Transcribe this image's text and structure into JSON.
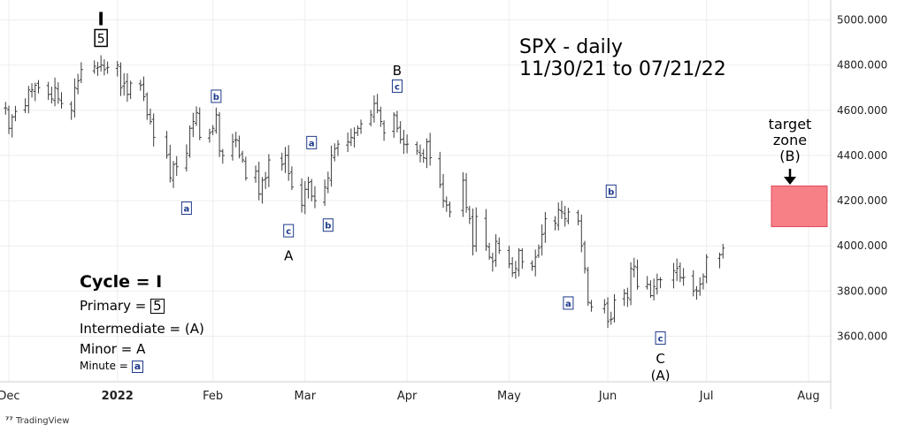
{
  "title_line1": "SPX - daily",
  "title_line2": "11/30/21 to 07/21/22",
  "target_zone": {
    "line1": "target",
    "line2": "zone",
    "line3": "(B)",
    "price_low": 4085,
    "price_high": 4265,
    "color": "#f78087"
  },
  "legend": {
    "cycle": "Cycle = I",
    "primary": "Primary  =",
    "primary_box": "5",
    "intermediate": "Intermediate  = (A)",
    "minor": "Minor = A",
    "minute": "Minute  =",
    "minute_box": "a"
  },
  "watermark": "TradingView",
  "colors": {
    "bars": "#3a3a3a",
    "label_blue": "#1e3a8a",
    "grid": "#eeeeee"
  },
  "chart_data": {
    "type": "ohlc",
    "ylim": [
      3420,
      5030
    ],
    "y_ticks": [
      "5000.000",
      "4800.000",
      "4600.000",
      "4400.000",
      "4200.000",
      "4000.000",
      "3800.000",
      "3600.000"
    ],
    "y_tick_values": [
      5000,
      4800,
      4600,
      4400,
      4200,
      4000,
      3800,
      3600
    ],
    "x_ticks": [
      "Dec",
      "2022",
      "Feb",
      "Mar",
      "Apr",
      "May",
      "Jun",
      "Jul",
      "Aug"
    ],
    "x_tick_dates": [
      "2021-12-01",
      "2022-01-03",
      "2022-02-01",
      "2022-03-01",
      "2022-04-01",
      "2022-05-02",
      "2022-06-01",
      "2022-07-01",
      "2022-08-01"
    ],
    "closes": [
      4610,
      4520,
      4570,
      4595,
      4620,
      4690,
      4690,
      4710,
      4700,
      4670,
      4650,
      4700,
      4650,
      4630,
      4600,
      4700,
      4730,
      4780,
      4795,
      4790,
      4800,
      4780,
      4790,
      4800,
      4700,
      4720,
      4670,
      4720,
      4710,
      4660,
      4580,
      4550,
      4480,
      4400,
      4300,
      4360,
      4350,
      4410,
      4520,
      4550,
      4590,
      4480,
      4500,
      4520,
      4580,
      4420,
      4400,
      4460,
      4470,
      4400,
      4380,
      4300,
      4330,
      4230,
      4290,
      4300,
      4380,
      4360,
      4400,
      4320,
      4260,
      4180,
      4250,
      4280,
      4220,
      4200,
      4260,
      4300,
      4400,
      4430,
      4450,
      4460,
      4480,
      4500,
      4520,
      4540,
      4580,
      4630,
      4600,
      4550,
      4500,
      4580,
      4520,
      4470,
      4450,
      4450,
      4420,
      4400,
      4390,
      4460,
      4390,
      4270,
      4200,
      4180,
      4150,
      4290,
      4170,
      4120,
      4000,
      4130,
      4000,
      3950,
      3930,
      4020,
      3980,
      3920,
      3880,
      3900,
      3980,
      3930,
      3910,
      3950,
      3990,
      4050,
      4120,
      4100,
      4160,
      4150,
      4120,
      4150,
      4110,
      4000,
      3900,
      3750,
      3730,
      3740,
      3665,
      3675,
      3760,
      3790,
      3770,
      3900,
      3910,
      3820,
      3830,
      3780,
      3820,
      3850,
      3850,
      3890,
      3900,
      3860,
      3860,
      3800,
      3800,
      3830,
      3865,
      3950,
      3960,
      3990
    ],
    "annotations": [
      {
        "text": "I",
        "style": "plain-bold",
        "date": "2021-12-29",
        "price": 5000
      },
      {
        "text": "5",
        "style": "box",
        "date": "2021-12-29",
        "price": 4918
      },
      {
        "text": "a",
        "style": "blue-box",
        "date": "2022-01-24",
        "price": 4165
      },
      {
        "text": "b",
        "style": "blue-box",
        "date": "2022-02-02",
        "price": 4660
      },
      {
        "text": "c",
        "style": "blue-box",
        "date": "2022-02-24",
        "price": 4065
      },
      {
        "text": "A",
        "style": "plain",
        "date": "2022-02-24",
        "price": 3960
      },
      {
        "text": "a",
        "style": "blue-box",
        "date": "2022-03-03",
        "price": 4455
      },
      {
        "text": "b",
        "style": "blue-box",
        "date": "2022-03-08",
        "price": 4090
      },
      {
        "text": "B",
        "style": "plain",
        "date": "2022-03-29",
        "price": 4780
      },
      {
        "text": "c",
        "style": "blue-box",
        "date": "2022-03-29",
        "price": 4705
      },
      {
        "text": "a",
        "style": "blue-box",
        "date": "2022-05-20",
        "price": 3745
      },
      {
        "text": "b",
        "style": "blue-box",
        "date": "2022-06-02",
        "price": 4240
      },
      {
        "text": "c",
        "style": "blue-box",
        "date": "2022-06-17",
        "price": 3590
      },
      {
        "text": "C",
        "style": "plain",
        "date": "2022-06-17",
        "price": 3505
      },
      {
        "text": "(A)",
        "style": "plain",
        "date": "2022-06-17",
        "price": 3430
      }
    ]
  }
}
